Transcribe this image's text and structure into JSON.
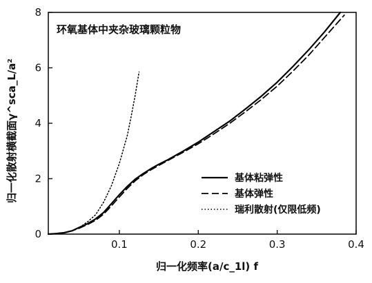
{
  "chart_data": {
    "type": "line",
    "annotation": "环氧基体中夹杂玻璃颗粒物",
    "xlabel": "归一化频率(a/c_1l) f",
    "ylabel": "归一化散射横截面γ^sca_L/a²",
    "xlim": [
      0.01,
      0.4
    ],
    "ylim": [
      0,
      8
    ],
    "x_ticks": [
      0.1,
      0.2,
      0.3,
      0.4
    ],
    "y_ticks": [
      0,
      2,
      4,
      6,
      8
    ],
    "x_tick_labels": [
      "0.1",
      "0.2",
      "0.3",
      "0.4"
    ],
    "y_tick_labels": [
      "0",
      "2",
      "4",
      "6",
      "8"
    ],
    "legend_position": "lower-right",
    "series": [
      {
        "name": "基体粘弹性",
        "style": "solid",
        "color": "#000000",
        "x": [
          0.01,
          0.02,
          0.03,
          0.04,
          0.05,
          0.06,
          0.07,
          0.08,
          0.09,
          0.1,
          0.11,
          0.12,
          0.13,
          0.14,
          0.15,
          0.16,
          0.18,
          0.2,
          0.22,
          0.24,
          0.26,
          0.28,
          0.3,
          0.32,
          0.34,
          0.36,
          0.38
        ],
        "y": [
          0.0,
          0.02,
          0.05,
          0.12,
          0.25,
          0.38,
          0.55,
          0.78,
          1.1,
          1.42,
          1.72,
          1.98,
          2.18,
          2.36,
          2.52,
          2.66,
          2.98,
          3.32,
          3.7,
          4.08,
          4.52,
          4.98,
          5.48,
          6.05,
          6.65,
          7.3,
          8.0
        ]
      },
      {
        "name": "基体弹性",
        "style": "dashed",
        "color": "#000000",
        "x": [
          0.01,
          0.02,
          0.03,
          0.04,
          0.05,
          0.06,
          0.07,
          0.08,
          0.09,
          0.1,
          0.11,
          0.12,
          0.13,
          0.14,
          0.15,
          0.16,
          0.18,
          0.2,
          0.22,
          0.24,
          0.26,
          0.28,
          0.3,
          0.32,
          0.34,
          0.36,
          0.385
        ],
        "y": [
          0.0,
          0.02,
          0.05,
          0.12,
          0.22,
          0.35,
          0.5,
          0.72,
          1.02,
          1.34,
          1.65,
          1.92,
          2.14,
          2.32,
          2.48,
          2.63,
          2.94,
          3.26,
          3.62,
          4.0,
          4.42,
          4.86,
          5.34,
          5.88,
          6.46,
          7.1,
          7.9
        ]
      },
      {
        "name": "瑞利散射(仅限低频)",
        "style": "dotted",
        "color": "#000000",
        "x": [
          0.05,
          0.06,
          0.07,
          0.08,
          0.09,
          0.1,
          0.11,
          0.115,
          0.12,
          0.125
        ],
        "y": [
          0.25,
          0.45,
          0.7,
          1.15,
          1.75,
          2.55,
          3.55,
          4.25,
          5.0,
          5.85
        ]
      }
    ]
  }
}
